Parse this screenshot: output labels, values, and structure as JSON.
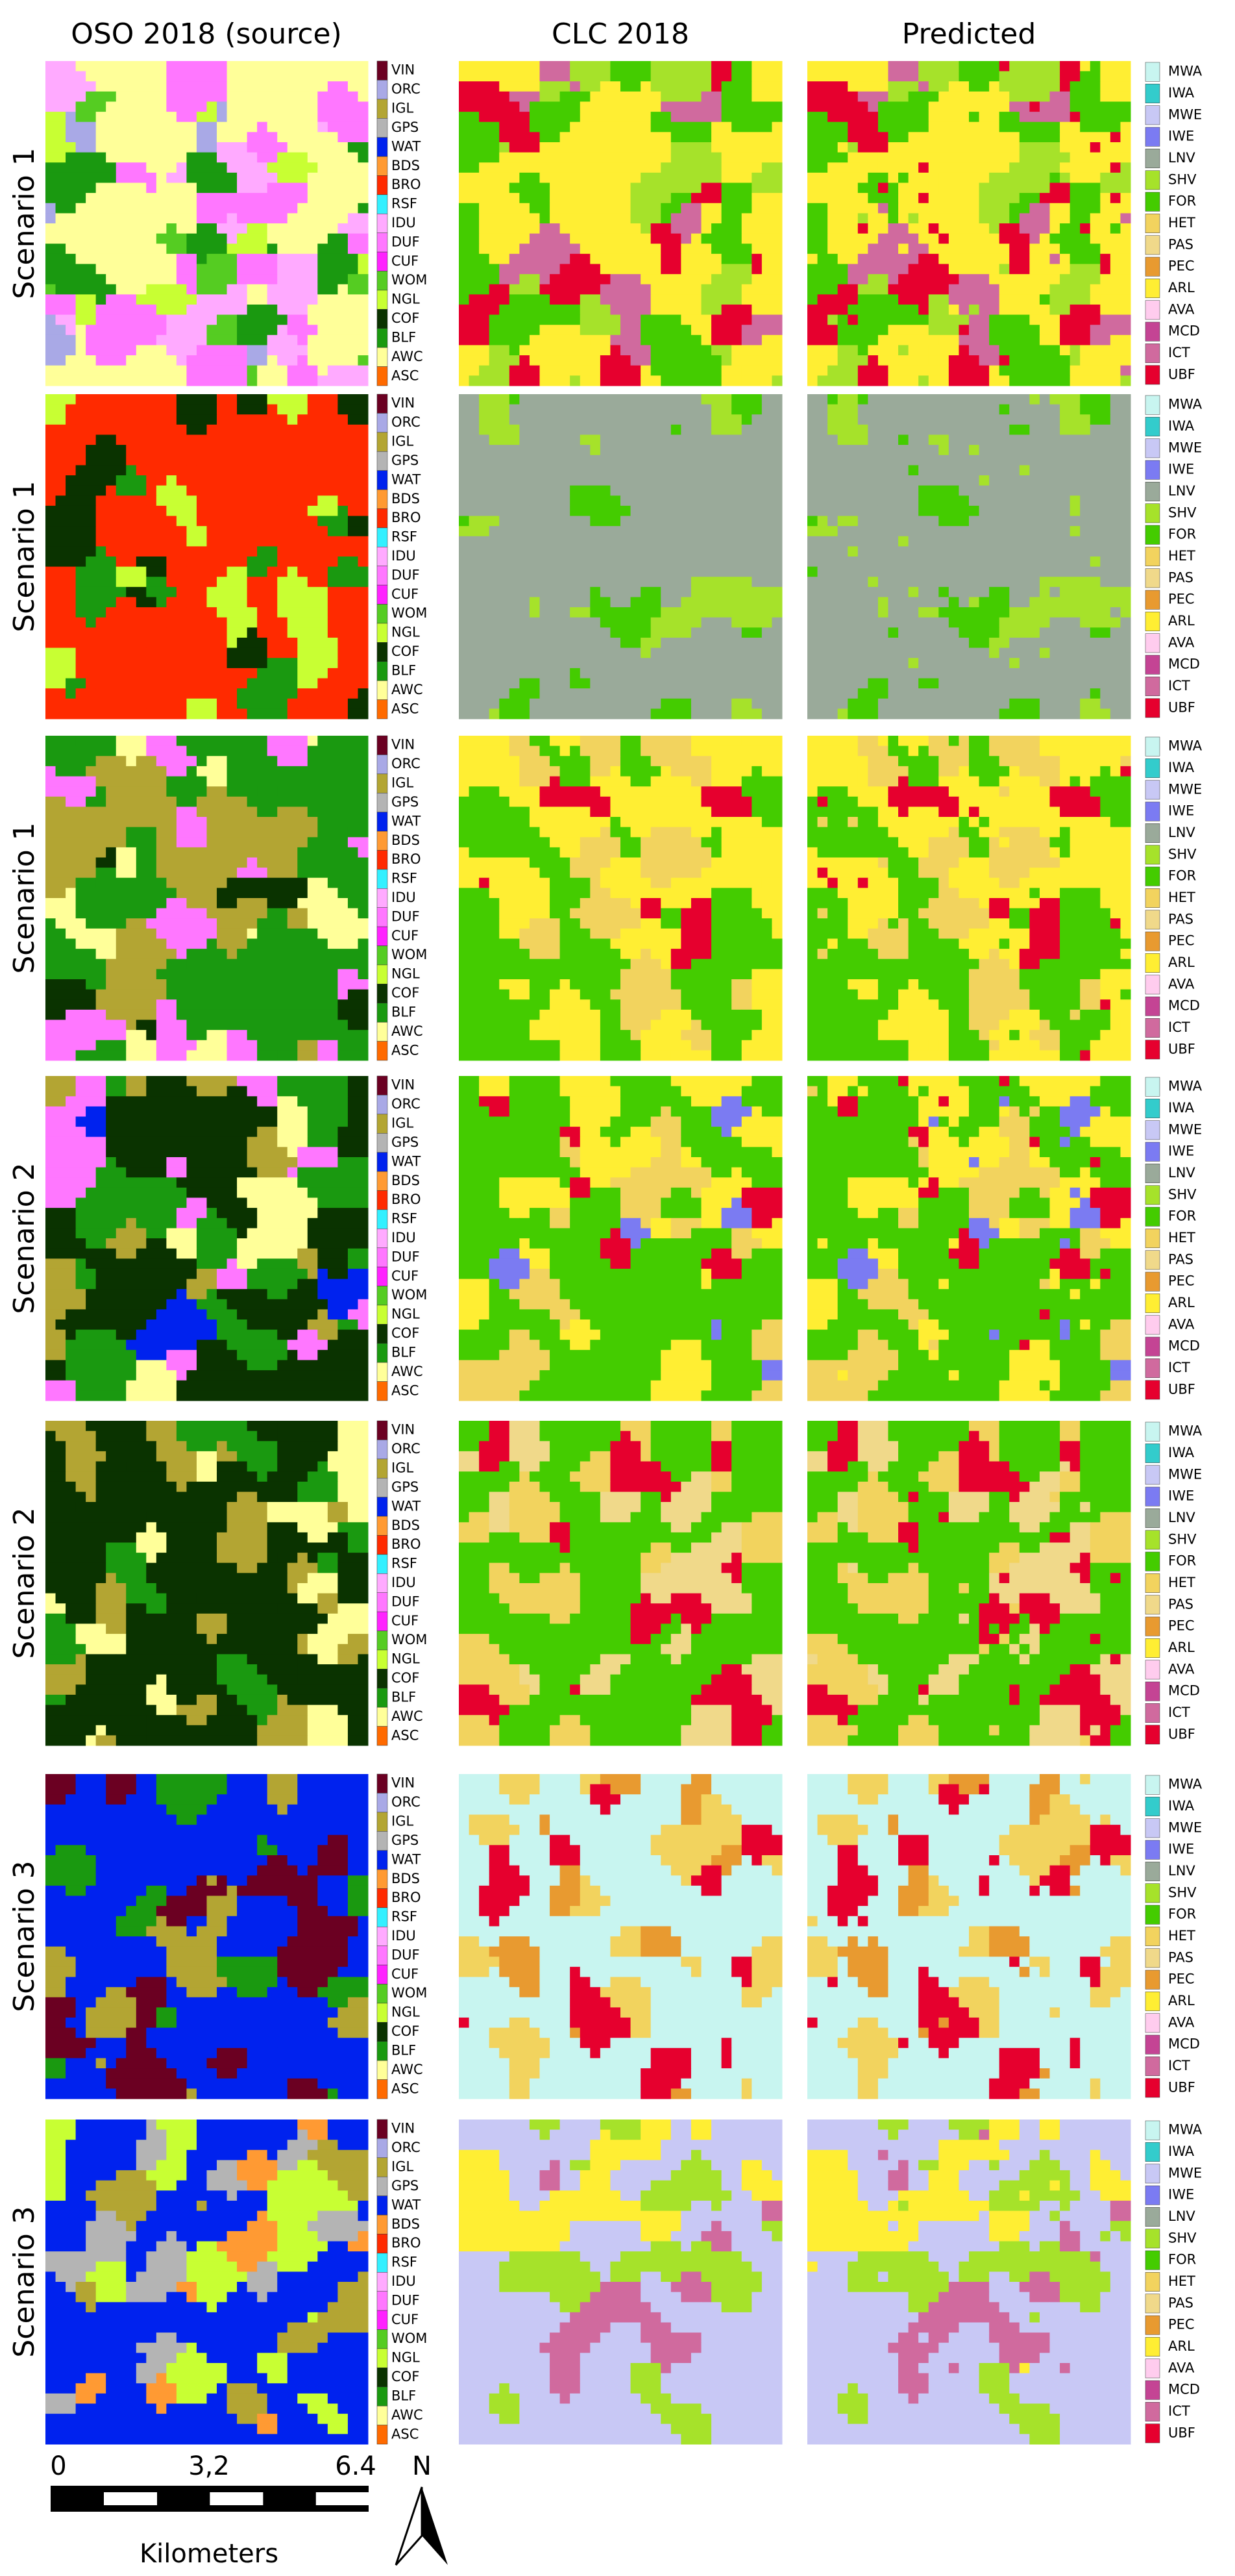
{
  "headers": [
    "OSO 2018 (source)",
    "CLC 2018",
    "Predicted"
  ],
  "rows": [
    "Scenario 1",
    "Scenario 1",
    "Scenario 1",
    "Scenario 2",
    "Scenario 2",
    "Scenario 3",
    "Scenario 3"
  ],
  "oso_legend": [
    {
      "label": "VIN",
      "color": "#6b0022"
    },
    {
      "label": "ORC",
      "color": "#a9a9e6"
    },
    {
      "label": "IGL",
      "color": "#b3a533"
    },
    {
      "label": "GPS",
      "color": "#b4b4b4"
    },
    {
      "label": "WAT",
      "color": "#0022ee"
    },
    {
      "label": "BDS",
      "color": "#ff9a33"
    },
    {
      "label": "BRO",
      "color": "#ff2a00"
    },
    {
      "label": "RSF",
      "color": "#33f0ff"
    },
    {
      "label": "IDU",
      "color": "#ffaaff"
    },
    {
      "label": "DUF",
      "color": "#ff77ff"
    },
    {
      "label": "CUF",
      "color": "#ff22ff"
    },
    {
      "label": "WOM",
      "color": "#55cc22"
    },
    {
      "label": "NGL",
      "color": "#c8ff33"
    },
    {
      "label": "COF",
      "color": "#0a3300"
    },
    {
      "label": "BLF",
      "color": "#1a9910"
    },
    {
      "label": "AWC",
      "color": "#ffff99"
    },
    {
      "label": "ASC",
      "color": "#ff6a00"
    }
  ],
  "clc_legend": [
    {
      "label": "MWA",
      "color": "#c8f5f0"
    },
    {
      "label": "IWA",
      "color": "#33cccc"
    },
    {
      "label": "MWE",
      "color": "#c8c8f5"
    },
    {
      "label": "IWE",
      "color": "#7b7bf2"
    },
    {
      "label": "LNV",
      "color": "#9aaa9a"
    },
    {
      "label": "SHV",
      "color": "#a6e22a"
    },
    {
      "label": "FOR",
      "color": "#44cc00"
    },
    {
      "label": "HET",
      "color": "#f2d35e"
    },
    {
      "label": "PAS",
      "color": "#f0d98a"
    },
    {
      "label": "PEC",
      "color": "#e89a30"
    },
    {
      "label": "ARL",
      "color": "#ffee33"
    },
    {
      "label": "AVA",
      "color": "#ffccee"
    },
    {
      "label": "MCD",
      "color": "#c44494"
    },
    {
      "label": "ICT",
      "color": "#d06a9e"
    },
    {
      "label": "UBF",
      "color": "#e6002e"
    }
  ],
  "scale_bar": {
    "ticks": [
      "0",
      "3,2",
      "6.4"
    ],
    "unit": "Kilometers",
    "north": "N"
  }
}
